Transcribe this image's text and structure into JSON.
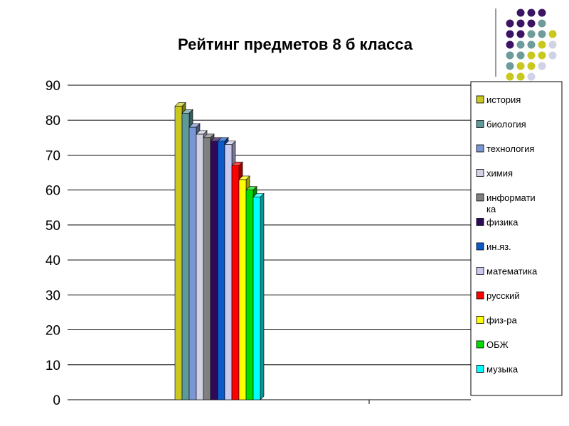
{
  "chart_data": {
    "type": "bar",
    "title": "Рейтинг предметов 8 б класса",
    "xlabel": "",
    "ylabel": "",
    "ylim": [
      0,
      90
    ],
    "yticks": [
      0,
      10,
      20,
      30,
      40,
      50,
      60,
      70,
      80,
      90
    ],
    "grid": true,
    "legend_position": "right",
    "bar_style": "3d",
    "series": [
      {
        "name": "история",
        "value": 84,
        "color": "#c8c81e"
      },
      {
        "name": "биология",
        "value": 82,
        "color": "#5f9a9a"
      },
      {
        "name": "технология",
        "value": 78,
        "color": "#7b96d6"
      },
      {
        "name": "химия",
        "value": 76,
        "color": "#d2d2e6"
      },
      {
        "name": "информатика",
        "value": 75,
        "color": "#808080"
      },
      {
        "name": "физика",
        "value": 74,
        "color": "#2e0a5a"
      },
      {
        "name": "ин.яз.",
        "value": 74,
        "color": "#0a5ac8"
      },
      {
        "name": "математика",
        "value": 73,
        "color": "#c8c8f0"
      },
      {
        "name": "русский",
        "value": 67,
        "color": "#ff0000"
      },
      {
        "name": "физ-ра",
        "value": 63,
        "color": "#ffff00"
      },
      {
        "name": "ОБЖ",
        "value": 60,
        "color": "#00dc00"
      },
      {
        "name": "музыка",
        "value": 58,
        "color": "#00ffff"
      }
    ],
    "legend_labels": [
      [
        "история"
      ],
      [
        "биология"
      ],
      [
        "технология"
      ],
      [
        "химия"
      ],
      [
        "информати",
        "ка"
      ],
      [
        "физика"
      ],
      [
        "ин.яз."
      ],
      [
        "математика"
      ],
      [
        "русский"
      ],
      [
        "физ-ра"
      ],
      [
        "ОБЖ"
      ],
      [
        "музыка"
      ]
    ]
  },
  "decoration": {
    "dot_colors": [
      "#3c1464",
      "#6e9b9b",
      "#c8c81e",
      "#d2d2e6"
    ]
  }
}
